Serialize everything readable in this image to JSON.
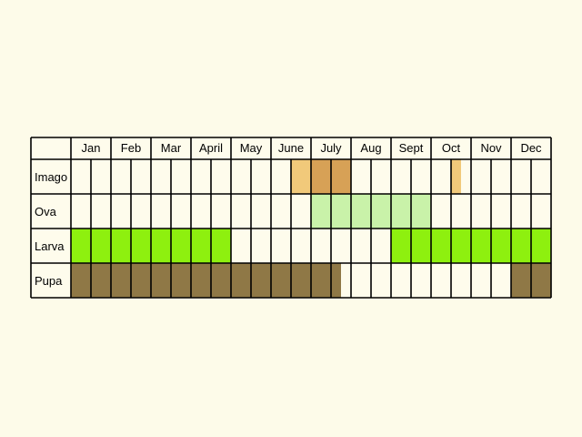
{
  "months": [
    "Jan",
    "Feb",
    "Mar",
    "April",
    "May",
    "June",
    "July",
    "Aug",
    "Sept",
    "Oct",
    "Nov",
    "Dec"
  ],
  "stages": [
    {
      "label": "Imago",
      "slug": "imago",
      "spans": [
        {
          "from": 11,
          "to": 12,
          "color": "#f1c97a"
        },
        {
          "from": 12,
          "to": 14,
          "color": "#d7a156"
        },
        {
          "from": 19,
          "to": 19.5,
          "color": "#f1c97a"
        }
      ]
    },
    {
      "label": "Ova",
      "slug": "ova",
      "spans": [
        {
          "from": 12,
          "to": 18,
          "color": "#c9f2a9"
        }
      ]
    },
    {
      "label": "Larva",
      "slug": "larva",
      "spans": [
        {
          "from": 0,
          "to": 8,
          "color": "#8ef00f"
        },
        {
          "from": 16,
          "to": 24,
          "color": "#8ef00f"
        }
      ]
    },
    {
      "label": "Pupa",
      "slug": "pupa",
      "spans": [
        {
          "from": 0,
          "to": 13.5,
          "color": "#8f7846"
        },
        {
          "from": 22,
          "to": 24,
          "color": "#8f7846"
        }
      ]
    }
  ]
}
